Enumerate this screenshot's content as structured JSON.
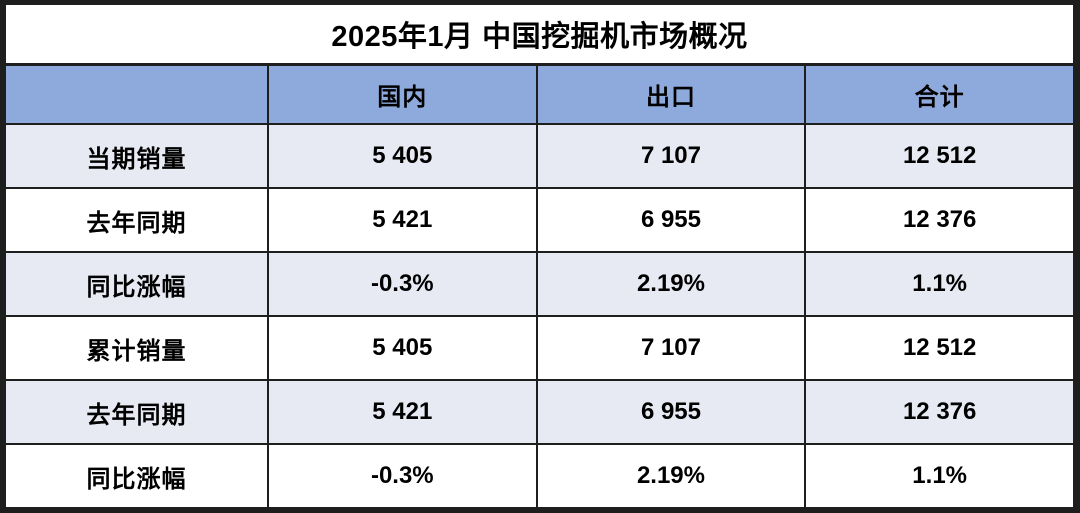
{
  "chart_data": {
    "type": "table",
    "title": "2025年1月 中国挖掘机市场概况",
    "columns": [
      "",
      "国内",
      "出口",
      "合计"
    ],
    "rows": [
      {
        "label": "当期销量",
        "values": [
          "5 405",
          "7 107",
          "12 512"
        ],
        "shaded": true
      },
      {
        "label": "去年同期",
        "values": [
          "5 421",
          "6 955",
          "12 376"
        ],
        "shaded": false
      },
      {
        "label": "同比涨幅",
        "values": [
          "-0.3%",
          "2.19%",
          "1.1%"
        ],
        "shaded": true
      },
      {
        "label": "累计销量",
        "values": [
          "5 405",
          "7 107",
          "12 512"
        ],
        "shaded": false
      },
      {
        "label": "去年同期",
        "values": [
          "5 421",
          "6 955",
          "12 376"
        ],
        "shaded": true
      },
      {
        "label": "同比涨幅",
        "values": [
          "-0.3%",
          "2.19%",
          "1.1%"
        ],
        "shaded": false
      }
    ]
  },
  "colors": {
    "header_bg": "#8EA9DB",
    "shaded_row_bg": "#E8EAF3",
    "plain_row_bg": "#FFFFFF",
    "title_bg": "#FFFFFF",
    "border": "#1E1E1E",
    "text": "#000000"
  }
}
